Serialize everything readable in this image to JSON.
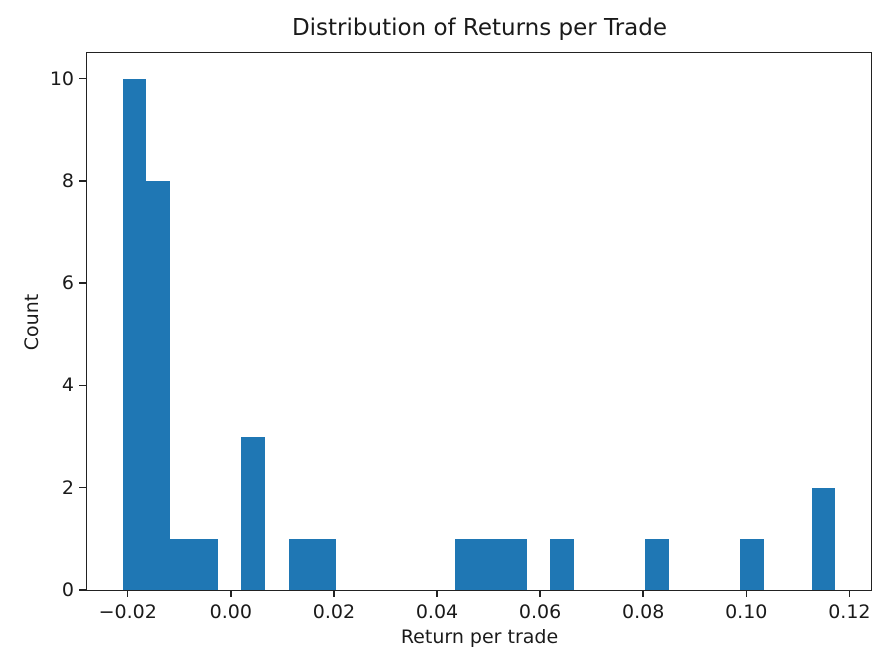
{
  "chart_data": {
    "type": "bar",
    "subtype": "histogram",
    "title": "Distribution of Returns per Trade",
    "xlabel": "Return per trade",
    "ylabel": "Count",
    "bar_color": "#1f77b4",
    "bin_start": -0.021,
    "bin_width": 0.00461,
    "counts": [
      10,
      8,
      1,
      1,
      0,
      3,
      0,
      1,
      1,
      0,
      0,
      0,
      0,
      0,
      1,
      1,
      1,
      0,
      1,
      0,
      0,
      0,
      1,
      0,
      0,
      0,
      1,
      0,
      0,
      2
    ],
    "xlim": [
      -0.0279,
      0.1242
    ],
    "ylim": [
      0,
      10.5
    ],
    "xticks": [
      -0.02,
      0.0,
      0.02,
      0.04,
      0.06,
      0.08,
      0.1,
      0.12
    ],
    "xtick_labels": [
      "−0.02",
      "0.00",
      "0.02",
      "0.04",
      "0.06",
      "0.08",
      "0.10",
      "0.12"
    ],
    "yticks": [
      0,
      2,
      4,
      6,
      8,
      10
    ],
    "ytick_labels": [
      "0",
      "2",
      "4",
      "6",
      "8",
      "10"
    ],
    "grid": false,
    "legend": null,
    "axis_color": "#222222",
    "text_color": "#1a1a1a"
  }
}
